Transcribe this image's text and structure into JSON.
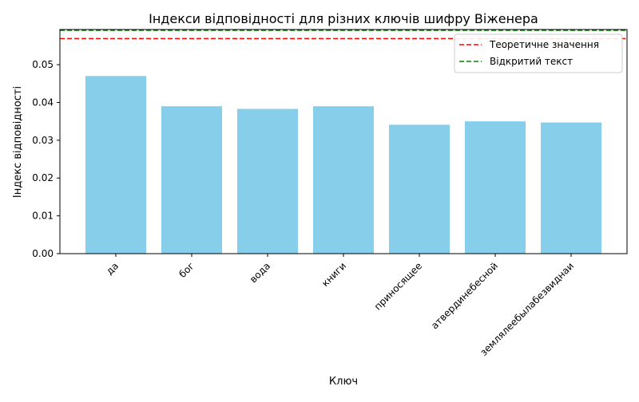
{
  "chart_data": {
    "type": "bar",
    "title": "Індекси відповідності для різних ключів шифру Віженера",
    "xlabel": "Ключ",
    "ylabel": "Індекс відповідності",
    "categories": [
      "да",
      "бог",
      "вода",
      "книги",
      "приносящее",
      "атвердинебесной",
      "землялеебылабезвиднаи"
    ],
    "values": [
      0.047,
      0.039,
      0.0383,
      0.039,
      0.0341,
      0.035,
      0.0347
    ],
    "bar_color": "#87ceeb",
    "ylim": [
      0,
      0.0593
    ],
    "yticks": [
      0.0,
      0.01,
      0.02,
      0.03,
      0.04,
      0.05
    ],
    "ytick_labels": [
      "0.00",
      "0.01",
      "0.02",
      "0.03",
      "0.04",
      "0.05"
    ],
    "reference_lines": [
      {
        "name": "Теоретичне значення",
        "value": 0.0569,
        "color": "#ff0000",
        "style": "dashed"
      },
      {
        "name": "Відкритий текст",
        "value": 0.0591,
        "color": "#008000",
        "style": "dashed"
      }
    ],
    "legend": {
      "position": "top-right",
      "entries": [
        "Теоретичне значення",
        "Відкритий текст"
      ]
    },
    "grid": false
  }
}
